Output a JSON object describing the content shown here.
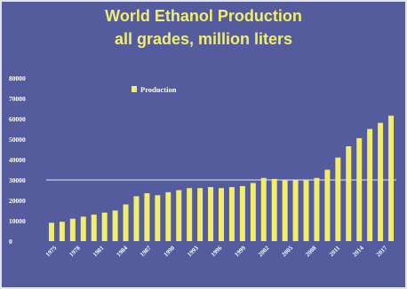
{
  "chart_data": {
    "type": "bar",
    "title": "World Ethanol Production",
    "subtitle": "all grades, million liters",
    "series": [
      {
        "name": "Production",
        "values": [
          9000,
          9500,
          11000,
          12000,
          13000,
          14000,
          15000,
          18000,
          22000,
          23500,
          22500,
          24000,
          25000,
          26000,
          26000,
          26500,
          26000,
          26500,
          27000,
          28500,
          31000,
          30500,
          30000,
          30000,
          30000,
          31000,
          35000,
          41000,
          46500,
          50500,
          55000,
          58000,
          61500
        ]
      }
    ],
    "categories": [
      "1975",
      "1976",
      "1977",
      "1978",
      "1979",
      "1980",
      "1981",
      "1982",
      "1983",
      "1984",
      "1985",
      "1986",
      "1987",
      "1988",
      "1989",
      "1990",
      "1991",
      "1992",
      "1993",
      "1994",
      "1995",
      "1996",
      "1997",
      "1998",
      "1999",
      "2000",
      "2001",
      "2002",
      "2003",
      "2004",
      "2005",
      "2006",
      "2007"
    ],
    "x_tick_labels": [
      "1975",
      "1978",
      "1981",
      "1984",
      "1987",
      "1990",
      "1993",
      "1996",
      "1999",
      "2002",
      "2005",
      "2008",
      "2011",
      "2014",
      "2017"
    ],
    "y_ticks": [
      "0",
      "10000",
      "20000",
      "30000",
      "40000",
      "50000",
      "60000",
      "70000",
      "80000"
    ],
    "ylim": [
      0,
      80000
    ],
    "reference_line": 30000,
    "legend_position": "top-left",
    "colors": {
      "bar": "#f2ee6c",
      "background": "#545c9e",
      "title": "#f1ee6e",
      "reference_line": "#e8e8f4"
    }
  }
}
